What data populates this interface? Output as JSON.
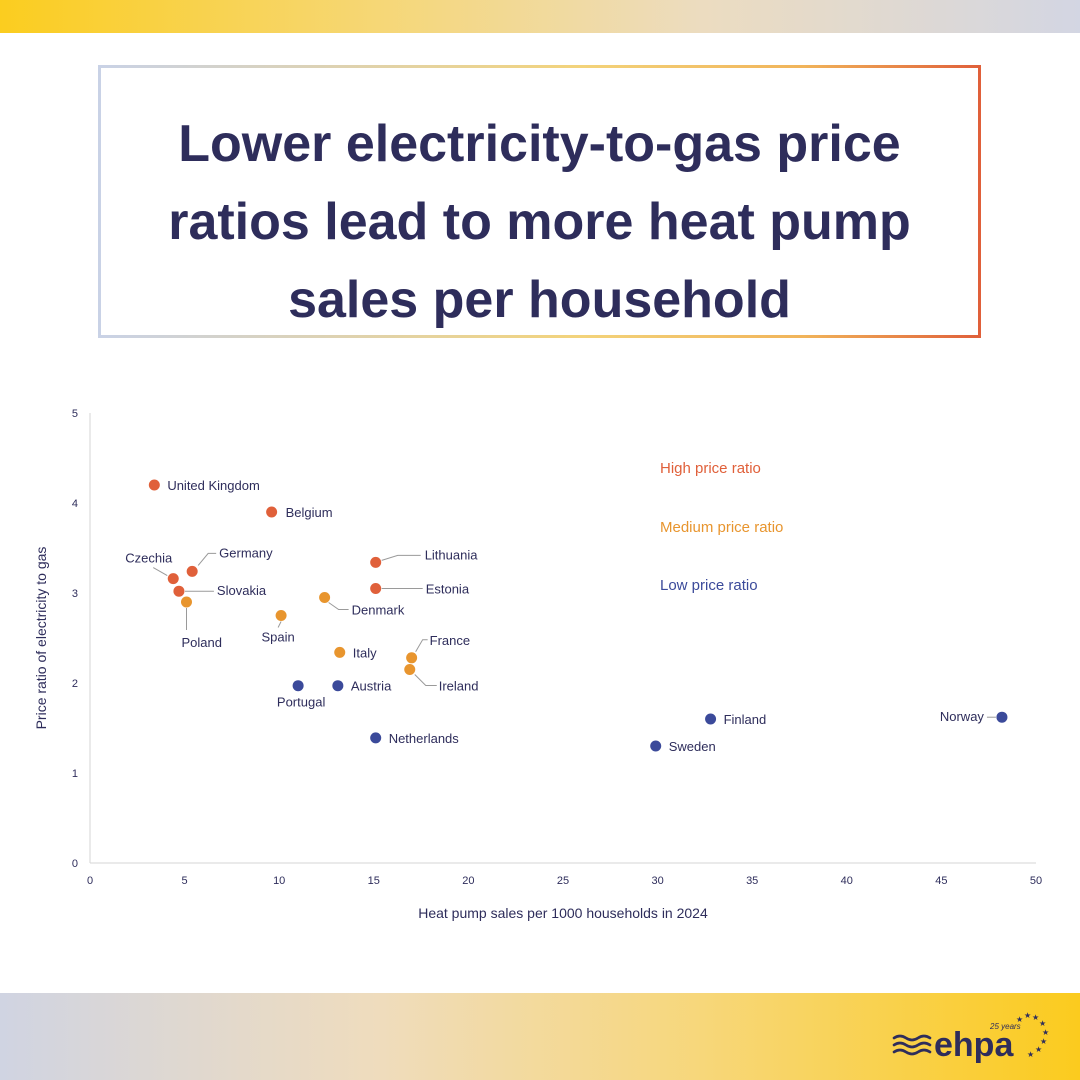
{
  "title": "Lower electricity-to-gas price ratios lead to more heat pump sales per household",
  "colors": {
    "high": "#e0603a",
    "medium": "#e8952e",
    "low": "#3b4a9a",
    "text": "#2e2d5b"
  },
  "logo": {
    "text": "ehpa",
    "badge": "25 years",
    "icon": "ehpa-waves-stars-logo"
  },
  "chart_data": {
    "type": "scatter",
    "title": "",
    "xlabel": "Heat pump sales per 1000 households in 2024",
    "ylabel": "Price ratio of electricity to gas",
    "xlim": [
      0,
      50
    ],
    "ylim": [
      0,
      5
    ],
    "xticks": [
      0,
      5,
      10,
      15,
      20,
      25,
      30,
      35,
      40,
      45,
      50
    ],
    "yticks": [
      0,
      1,
      2,
      3,
      4,
      5
    ],
    "grid": false,
    "legend": [
      {
        "name": "High price ratio",
        "group": "high"
      },
      {
        "name": "Medium price ratio",
        "group": "medium"
      },
      {
        "name": "Low price ratio",
        "group": "low"
      }
    ],
    "points": [
      {
        "label": "United Kingdom",
        "x": 3.4,
        "y": 4.2,
        "group": "high"
      },
      {
        "label": "Belgium",
        "x": 9.6,
        "y": 3.9,
        "group": "high"
      },
      {
        "label": "Germany",
        "x": 5.4,
        "y": 3.24,
        "group": "high"
      },
      {
        "label": "Czechia",
        "x": 4.4,
        "y": 3.16,
        "group": "high"
      },
      {
        "label": "Slovakia",
        "x": 4.7,
        "y": 3.02,
        "group": "high"
      },
      {
        "label": "Lithuania",
        "x": 15.1,
        "y": 3.34,
        "group": "high"
      },
      {
        "label": "Estonia",
        "x": 15.1,
        "y": 3.05,
        "group": "high"
      },
      {
        "label": "Poland",
        "x": 5.1,
        "y": 2.9,
        "group": "medium"
      },
      {
        "label": "Denmark",
        "x": 12.4,
        "y": 2.95,
        "group": "medium"
      },
      {
        "label": "Spain",
        "x": 10.1,
        "y": 2.75,
        "group": "medium"
      },
      {
        "label": "Italy",
        "x": 13.2,
        "y": 2.34,
        "group": "medium"
      },
      {
        "label": "France",
        "x": 17.0,
        "y": 2.28,
        "group": "medium"
      },
      {
        "label": "Ireland",
        "x": 16.9,
        "y": 2.15,
        "group": "medium"
      },
      {
        "label": "Portugal",
        "x": 11.0,
        "y": 1.97,
        "group": "low"
      },
      {
        "label": "Austria",
        "x": 13.1,
        "y": 1.97,
        "group": "low"
      },
      {
        "label": "Netherlands",
        "x": 15.1,
        "y": 1.39,
        "group": "low"
      },
      {
        "label": "Finland",
        "x": 32.8,
        "y": 1.6,
        "group": "low"
      },
      {
        "label": "Sweden",
        "x": 29.9,
        "y": 1.3,
        "group": "low"
      },
      {
        "label": "Norway",
        "x": 48.2,
        "y": 1.62,
        "group": "low"
      }
    ]
  }
}
